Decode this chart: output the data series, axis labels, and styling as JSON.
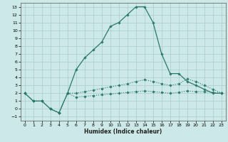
{
  "xlabel": "Humidex (Indice chaleur)",
  "bg_color": "#cce8e8",
  "grid_color": "#aacccc",
  "line_color": "#2a7a6a",
  "xlim": [
    -0.5,
    23.5
  ],
  "ylim": [
    -1.5,
    13.5
  ],
  "xticks": [
    0,
    1,
    2,
    3,
    4,
    5,
    6,
    7,
    8,
    9,
    10,
    11,
    12,
    13,
    14,
    15,
    16,
    17,
    18,
    19,
    20,
    21,
    22,
    23
  ],
  "yticks": [
    -1,
    0,
    1,
    2,
    3,
    4,
    5,
    6,
    7,
    8,
    9,
    10,
    11,
    12,
    13
  ],
  "curve1_x": [
    0,
    1,
    2,
    3,
    4,
    5,
    6,
    7,
    8,
    9,
    10,
    11,
    12,
    13,
    14,
    15,
    16,
    17,
    18,
    19,
    20,
    21,
    22,
    23
  ],
  "curve1_y": [
    2,
    1,
    1,
    0,
    -0.5,
    2,
    5,
    6.5,
    7.5,
    8.5,
    10.5,
    11,
    12,
    13,
    13,
    11,
    7,
    4.5,
    4.5,
    3.5,
    3,
    2.5,
    2,
    2
  ],
  "curve2_x": [
    0,
    1,
    2,
    3,
    4,
    5,
    6,
    7,
    8,
    9,
    10,
    11,
    12,
    13,
    14,
    15,
    16,
    17,
    18,
    19,
    20,
    21,
    22,
    23
  ],
  "curve2_y": [
    2,
    1,
    1,
    0,
    -0.5,
    2,
    2,
    2.2,
    2.4,
    2.6,
    2.8,
    3.0,
    3.2,
    3.5,
    3.7,
    3.5,
    3.2,
    3.0,
    3.2,
    3.8,
    3.5,
    3,
    2.5,
    2
  ],
  "curve3_x": [
    0,
    1,
    2,
    3,
    4,
    5,
    6,
    7,
    8,
    9,
    10,
    11,
    12,
    13,
    14,
    15,
    16,
    17,
    18,
    19,
    20,
    21,
    22,
    23
  ],
  "curve3_y": [
    2,
    1,
    1,
    0,
    -0.5,
    2,
    1.5,
    1.6,
    1.7,
    1.8,
    1.9,
    2.0,
    2.1,
    2.2,
    2.3,
    2.2,
    2.1,
    2.0,
    2.1,
    2.3,
    2.2,
    2.2,
    2.1,
    2.0
  ]
}
